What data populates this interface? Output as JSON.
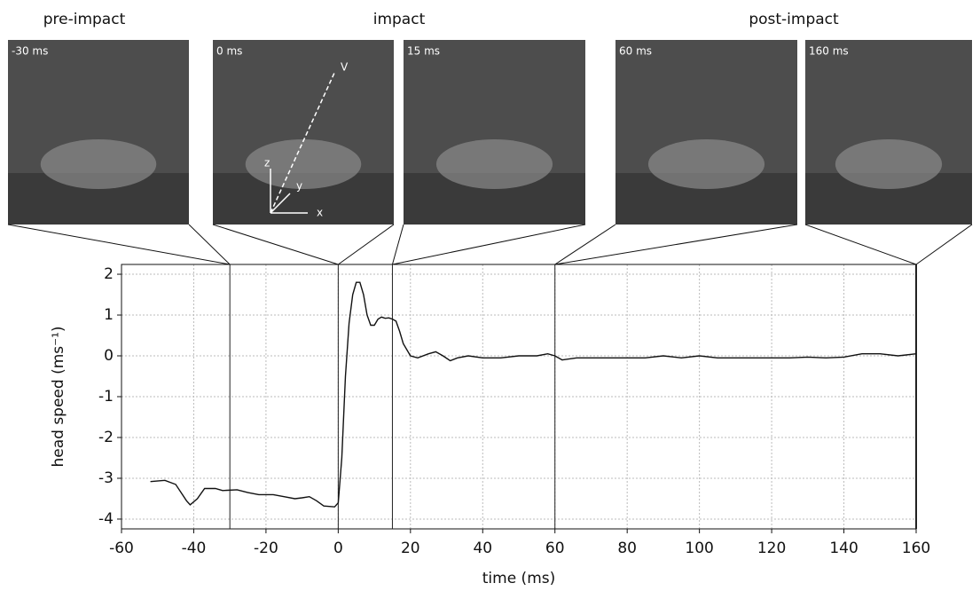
{
  "chart_data": {
    "type": "line",
    "groups": [
      "pre-impact",
      "impact",
      "post-impact"
    ],
    "frames": [
      {
        "label": "-30 ms",
        "time": -30
      },
      {
        "label": "0 ms",
        "time": 0
      },
      {
        "label": "15 ms",
        "time": 15
      },
      {
        "label": "60 ms",
        "time": 60
      },
      {
        "label": "160 ms",
        "time": 160
      }
    ],
    "axes_labels": [
      "z",
      "y",
      "x",
      "V"
    ],
    "xlabel": "time (ms)",
    "ylabel": "head speed (ms⁻¹)",
    "x": [
      -52,
      -48,
      -45,
      -42,
      -41,
      -39,
      -37,
      -34,
      -32,
      -28,
      -25,
      -22,
      -18,
      -15,
      -12,
      -10,
      -8,
      -6,
      -4,
      -1,
      0,
      1,
      2,
      3,
      4,
      5,
      6,
      7,
      8,
      9,
      10,
      11,
      12,
      13,
      14,
      15,
      16,
      17,
      18,
      20,
      22,
      25,
      27,
      29,
      31,
      33,
      36,
      40,
      45,
      50,
      55,
      58,
      60,
      62,
      66,
      70,
      75,
      80,
      85,
      90,
      95,
      100,
      105,
      110,
      115,
      120,
      125,
      130,
      135,
      140,
      145,
      150,
      155,
      160
    ],
    "values": [
      -3.08,
      -3.05,
      -3.15,
      -3.55,
      -3.65,
      -3.5,
      -3.25,
      -3.25,
      -3.3,
      -3.28,
      -3.35,
      -3.4,
      -3.4,
      -3.45,
      -3.5,
      -3.48,
      -3.45,
      -3.55,
      -3.68,
      -3.7,
      -3.6,
      -2.5,
      -0.5,
      0.8,
      1.5,
      1.8,
      1.8,
      1.5,
      1.0,
      0.75,
      0.75,
      0.9,
      0.95,
      0.92,
      0.93,
      0.9,
      0.85,
      0.6,
      0.3,
      0.0,
      -0.05,
      0.05,
      0.1,
      0.0,
      -0.12,
      -0.05,
      0.0,
      -0.05,
      -0.05,
      0.0,
      0.0,
      0.05,
      0.0,
      -0.1,
      -0.05,
      -0.05,
      -0.05,
      -0.05,
      -0.05,
      0.0,
      -0.05,
      0.0,
      -0.05,
      -0.05,
      -0.05,
      -0.05,
      -0.05,
      -0.03,
      -0.05,
      -0.03,
      0.05,
      0.05,
      0.0,
      0.05
    ],
    "color": "#111111",
    "xlim": [
      -60,
      160
    ],
    "ylim": [
      -4.24,
      2.24
    ],
    "xticks": [
      -60,
      -40,
      -20,
      0,
      20,
      40,
      60,
      80,
      100,
      120,
      140,
      160
    ],
    "yticks": [
      -4,
      -3,
      -2,
      -1,
      0,
      1,
      2
    ],
    "grid": true
  }
}
